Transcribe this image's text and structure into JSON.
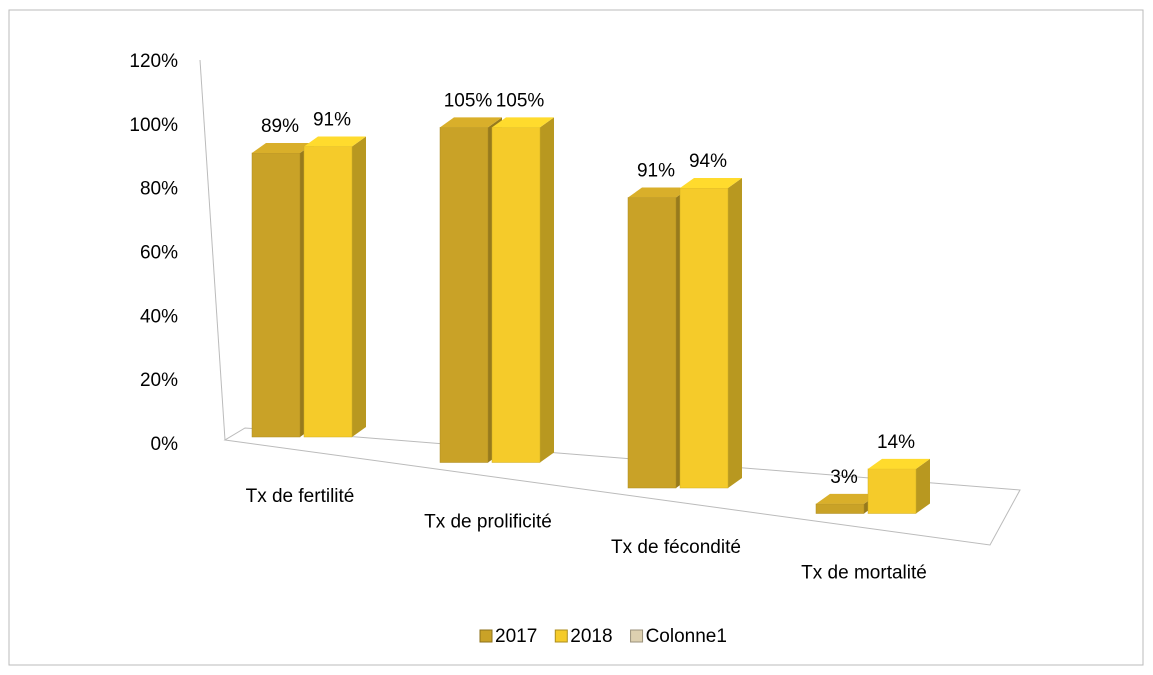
{
  "chart_data": {
    "type": "bar3d",
    "categories": [
      "Tx de fertilité",
      "Tx de prolificité",
      "Tx de fécondité",
      "Tx de mortalité"
    ],
    "series": [
      {
        "name": "2017",
        "color": "#c9a227",
        "values": [
          89,
          105,
          91,
          3
        ],
        "value_labels": [
          "89%",
          "105%",
          "91%",
          "3%"
        ]
      },
      {
        "name": "2018",
        "color": "#f5cb2a",
        "values": [
          91,
          105,
          94,
          14
        ],
        "value_labels": [
          "91%",
          "105%",
          "94%",
          "14%"
        ]
      },
      {
        "name": "Colonne1",
        "color": "#ddd0b0",
        "values": [
          null,
          null,
          null,
          null
        ]
      }
    ],
    "ylim": [
      0,
      120
    ],
    "yticks": [
      {
        "value": 0,
        "label": "0%"
      },
      {
        "value": 20,
        "label": "20%"
      },
      {
        "value": 40,
        "label": "40%"
      },
      {
        "value": 60,
        "label": "60%"
      },
      {
        "value": 80,
        "label": "80%"
      },
      {
        "value": 100,
        "label": "100%"
      },
      {
        "value": 120,
        "label": "120%"
      }
    ],
    "legend": "bottom"
  }
}
